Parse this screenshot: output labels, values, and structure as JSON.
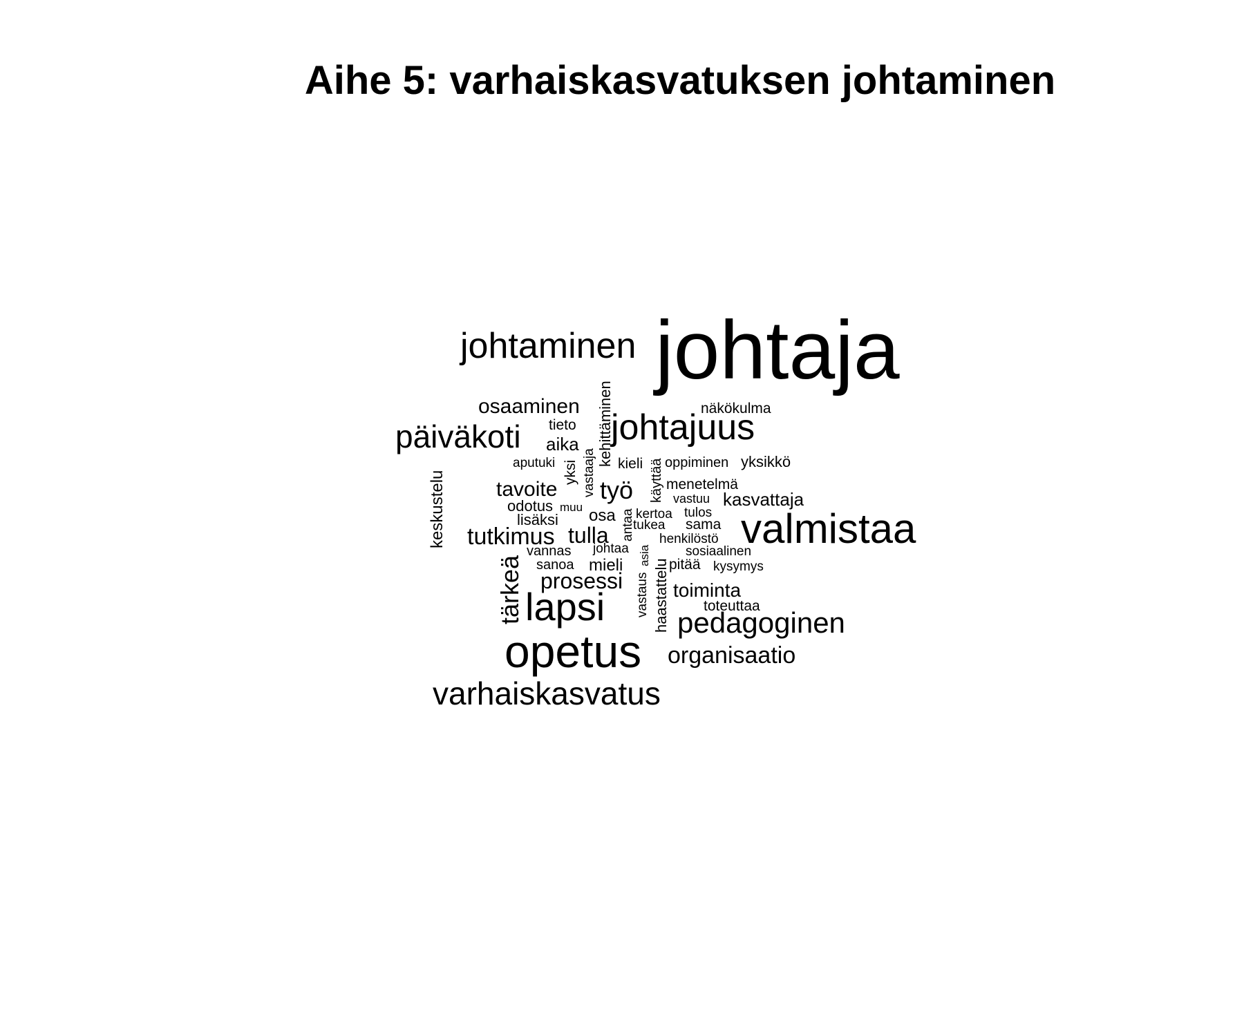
{
  "title": "Aihe 5: varhaiskasvatuksen johtaminen",
  "text_color": "#000000",
  "background_color": "#ffffff",
  "words": [
    "johtaja",
    "johtaminen",
    "johtajuus",
    "valmistaa",
    "opetus",
    "lapsi",
    "varhaiskasvatus",
    "päiväkoti",
    "pedagoginen",
    "organisaatio",
    "osaaminen",
    "näkökulma",
    "tieto",
    "aika",
    "kehittäminen",
    "aputuki",
    "yksi",
    "vastaaja",
    "kieli",
    "käyttää",
    "oppiminen",
    "yksikkö",
    "keskustelu",
    "tavoite",
    "työ",
    "menetelmä",
    "vastuu",
    "kasvattaja",
    "odotus",
    "muu",
    "lisäksi",
    "osa",
    "antaa",
    "kertoa",
    "tulos",
    "tukea",
    "sama",
    "tutkimus",
    "tulla",
    "henkilöstö",
    "vannas",
    "johtaa",
    "asia",
    "sosiaalinen",
    "sanoa",
    "mieli",
    "pitää",
    "kysymys",
    "tärkeä",
    "prosessi",
    "vastaus",
    "haastattelu",
    "toiminta",
    "toteuttaa"
  ]
}
